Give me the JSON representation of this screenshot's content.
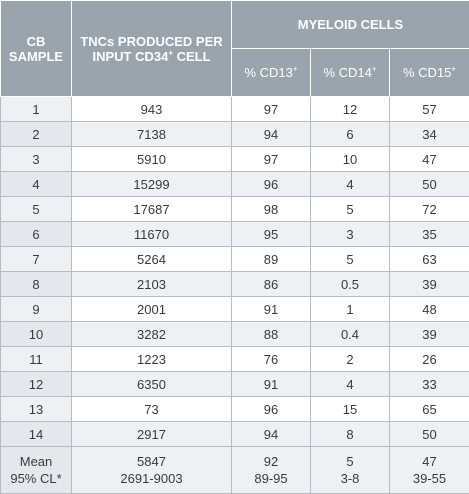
{
  "header": {
    "cb_sample": [
      "CB",
      "SAMPLE"
    ],
    "tnc": [
      "TNCs PRODUCED PER",
      "INPUT CD34",
      "+",
      " CELL"
    ],
    "myeloid": "MYELOID CELLS",
    "cd13": [
      "% CD13",
      "+"
    ],
    "cd14": [
      "% CD14",
      "+"
    ],
    "cd15": [
      "% CD15",
      "+"
    ]
  },
  "rows": [
    [
      "1",
      "943",
      "97",
      "12",
      "57"
    ],
    [
      "2",
      "7138",
      "94",
      "6",
      "34"
    ],
    [
      "3",
      "5910",
      "97",
      "10",
      "47"
    ],
    [
      "4",
      "15299",
      "96",
      "4",
      "50"
    ],
    [
      "5",
      "17687",
      "98",
      "5",
      "72"
    ],
    [
      "6",
      "11670",
      "95",
      "3",
      "35"
    ],
    [
      "7",
      "5264",
      "89",
      "5",
      "63"
    ],
    [
      "8",
      "2103",
      "86",
      "0.5",
      "39"
    ],
    [
      "9",
      "2001",
      "91",
      "1",
      "48"
    ],
    [
      "10",
      "3282",
      "88",
      "0.4",
      "39"
    ],
    [
      "11",
      "1223",
      "76",
      "2",
      "26"
    ],
    [
      "12",
      "6350",
      "91",
      "4",
      "33"
    ],
    [
      "13",
      "73",
      "96",
      "15",
      "65"
    ],
    [
      "14",
      "2917",
      "94",
      "8",
      "50"
    ]
  ],
  "mean_row": {
    "label": [
      "Mean",
      "95% CL*"
    ],
    "tnc": [
      "5847",
      "2691-9003"
    ],
    "cd13": [
      "92",
      "89-95"
    ],
    "cd14": [
      "5",
      "3-8"
    ],
    "cd15": [
      "47",
      "39-55"
    ]
  }
}
